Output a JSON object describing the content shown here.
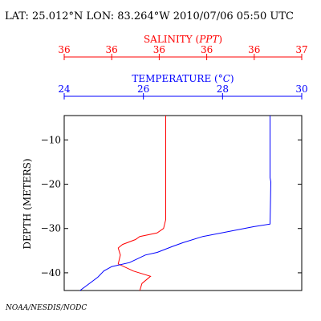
{
  "header": {
    "text": "LAT: 25.012°N LON: 83.264°W 2010/07/06 05:50 UTC"
  },
  "footer": {
    "credit": "NOAA/NESDIS/NODC"
  },
  "colors": {
    "salinity": "#ff0000",
    "temperature": "#0000ff",
    "frame": "#000000"
  },
  "chart_data": {
    "type": "line",
    "grid": false,
    "y_axis": {
      "label": "DEPTH (METERS)",
      "range": [
        -44,
        -4.5
      ],
      "ticks": [
        -10,
        -20,
        -30,
        -40
      ],
      "tick_labels": [
        "−10",
        "−20",
        "−30",
        "−40"
      ]
    },
    "x_axis_top_salinity": {
      "label": "SALINITY",
      "label_unit": "PPT",
      "range": [
        35.9,
        37.0
      ],
      "ticks": [
        35.9,
        36.12,
        36.34,
        36.56,
        36.78,
        37.0
      ],
      "tick_labels": [
        "36",
        "36",
        "36",
        "36",
        "36",
        "37"
      ]
    },
    "x_axis_top_temperature": {
      "label": "TEMPERATURE",
      "label_unit": "°C",
      "range": [
        24,
        30
      ],
      "ticks": [
        24,
        26,
        28,
        30
      ],
      "tick_labels": [
        "24",
        "26",
        "28",
        "30"
      ]
    },
    "series": [
      {
        "name": "SALINITY",
        "axis": "salinity",
        "x": [
          36.37,
          36.37,
          36.37,
          36.37,
          36.36,
          36.33,
          36.25,
          36.23,
          36.17,
          36.15,
          36.16,
          36.15,
          36.22,
          36.3,
          36.26,
          36.25
        ],
        "y": [
          -4.5,
          -10,
          -20,
          -28,
          -30,
          -31,
          -31.8,
          -32.5,
          -33.6,
          -34.4,
          -36,
          -38,
          -39.6,
          -40.8,
          -42.4,
          -44
        ]
      },
      {
        "name": "TEMPERATURE",
        "axis": "temperature",
        "x": [
          29.2,
          29.2,
          29.2,
          29.22,
          29.2,
          28.78,
          27.5,
          27.0,
          26.72,
          26.35,
          26.05,
          25.65,
          25.2,
          25.0,
          24.85,
          24.7,
          24.4
        ],
        "y": [
          -4.5,
          -10,
          -18.5,
          -19.5,
          -29,
          -29.6,
          -31.8,
          -33.2,
          -34.1,
          -35.4,
          -36,
          -37.7,
          -38.6,
          -39.6,
          -41,
          -42,
          -44
        ]
      }
    ]
  }
}
